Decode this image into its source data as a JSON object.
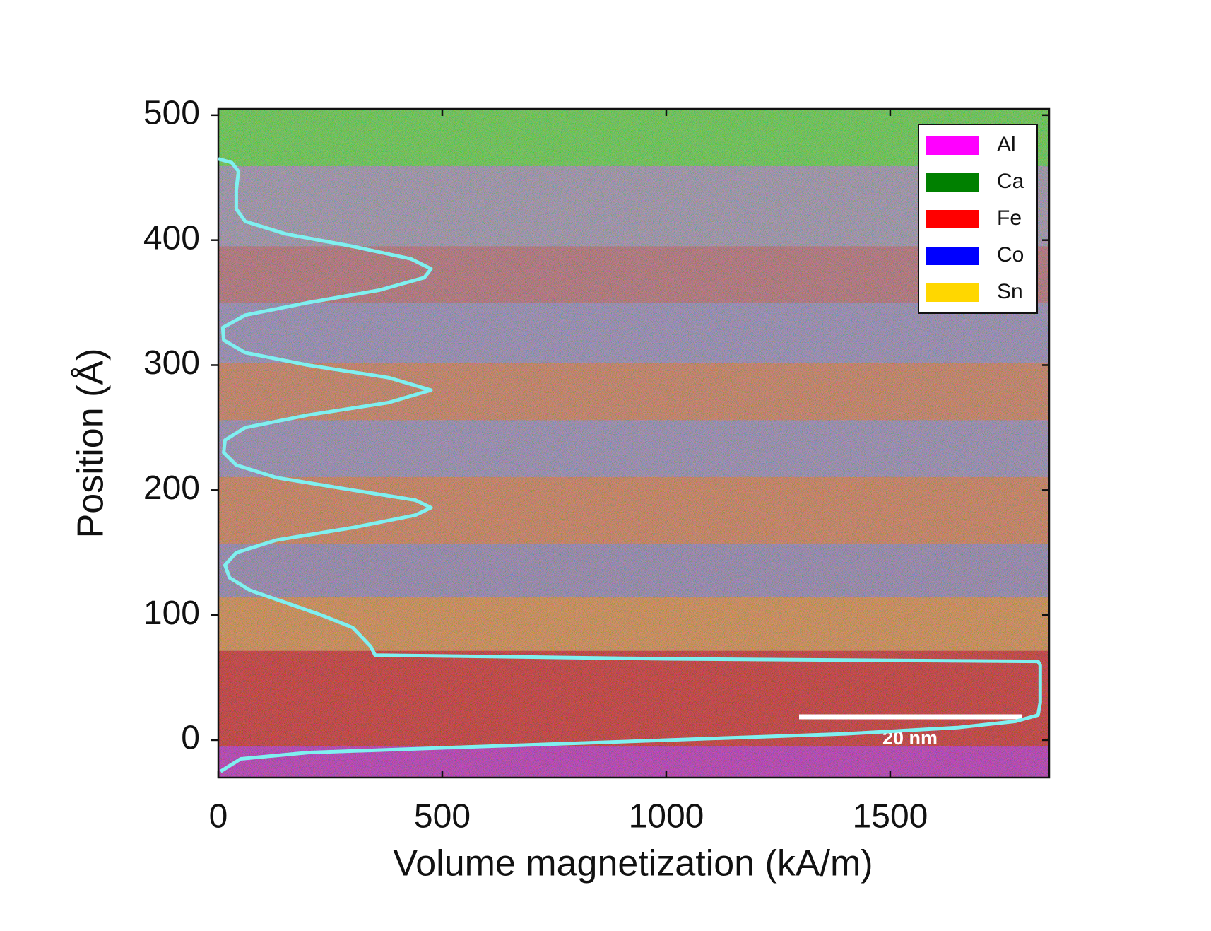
{
  "chart_data": {
    "type": "line",
    "x_label": "Volume magnetization (kA/m)",
    "y_label": "Position (Å)",
    "xlim": [
      0,
      1855
    ],
    "ylim": [
      -30,
      505
    ],
    "xticks": [
      0,
      500,
      1000,
      1500
    ],
    "yticks": [
      0,
      100,
      200,
      300,
      400,
      500
    ],
    "line_color": "#7ff0f0",
    "x": [
      5,
      50,
      200,
      600,
      1000,
      1400,
      1650,
      1780,
      1830,
      1835,
      1835,
      1830,
      1000,
      350,
      340,
      300,
      230,
      150,
      70,
      25,
      15,
      40,
      130,
      300,
      440,
      475,
      440,
      300,
      130,
      40,
      12,
      15,
      60,
      200,
      380,
      475,
      380,
      200,
      60,
      12,
      10,
      60,
      200,
      360,
      460,
      475,
      430,
      300,
      150,
      60,
      40,
      40,
      45,
      30,
      0
    ],
    "values": [
      -25,
      -15,
      -10,
      -5,
      0,
      5,
      10,
      15,
      20,
      30,
      60,
      63,
      65,
      68,
      75,
      90,
      100,
      110,
      120,
      130,
      140,
      150,
      160,
      170,
      180,
      186,
      192,
      200,
      210,
      220,
      230,
      240,
      250,
      260,
      270,
      280,
      290,
      300,
      310,
      320,
      330,
      340,
      350,
      360,
      370,
      377,
      385,
      395,
      405,
      415,
      425,
      440,
      455,
      462,
      465
    ],
    "map_legend": [
      {
        "name": "Al",
        "color": "#ff00ff"
      },
      {
        "name": "Ca",
        "color": "#008000"
      },
      {
        "name": "Fe",
        "color": "#ff0000"
      },
      {
        "name": "Co",
        "color": "#0000ff"
      },
      {
        "name": "Sn",
        "color": "#ffd700"
      }
    ],
    "scale_bar_label": "20 nm"
  }
}
